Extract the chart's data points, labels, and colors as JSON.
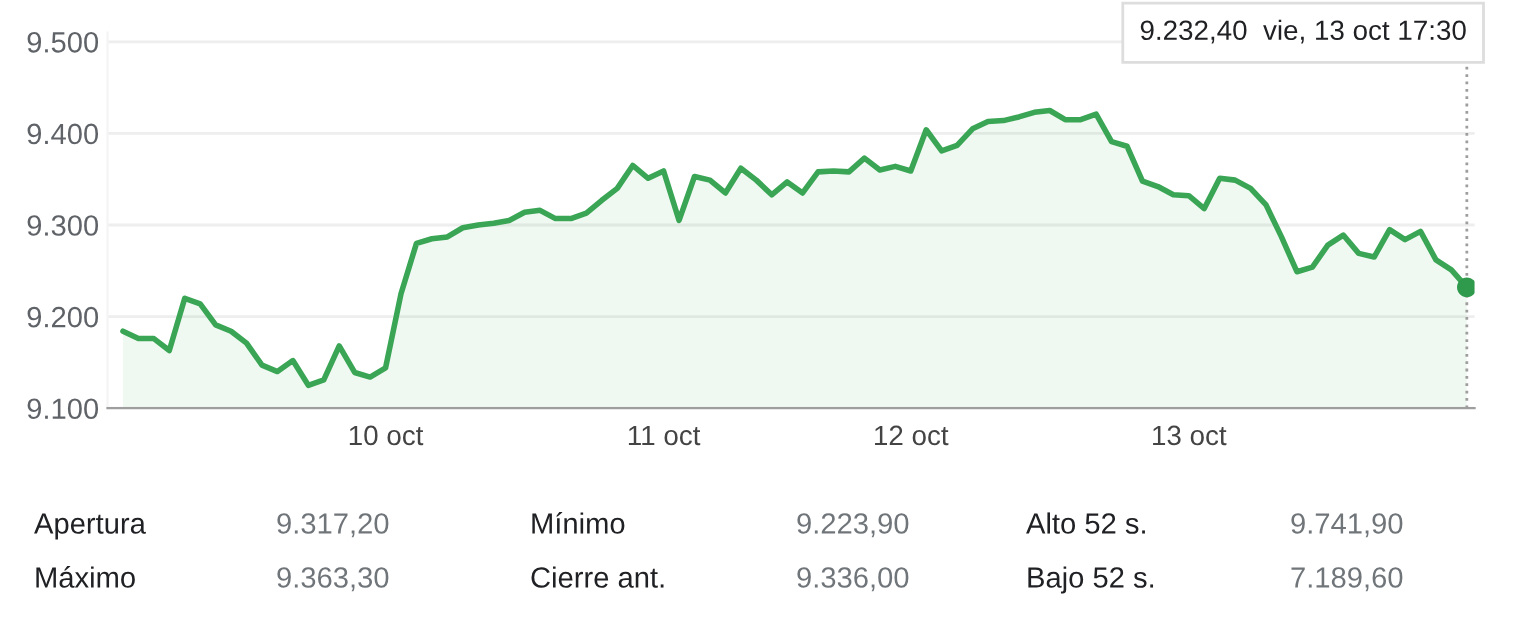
{
  "chart_data": {
    "type": "area",
    "categories": [
      null,
      null,
      null,
      null,
      null,
      null,
      null,
      null,
      null,
      null,
      null,
      null,
      null,
      null,
      null,
      null,
      null,
      "10 oct",
      null,
      null,
      null,
      null,
      null,
      null,
      null,
      null,
      null,
      null,
      null,
      null,
      null,
      null,
      null,
      null,
      null,
      "11 oct",
      null,
      null,
      null,
      null,
      null,
      null,
      null,
      null,
      null,
      null,
      null,
      null,
      null,
      null,
      null,
      "12 oct",
      null,
      null,
      null,
      null,
      null,
      null,
      null,
      null,
      null,
      null,
      null,
      null,
      null,
      null,
      null,
      null,
      null,
      "13 oct",
      null,
      null,
      null,
      null,
      null,
      null,
      null,
      null,
      null,
      null,
      null,
      null,
      null,
      null,
      null,
      null,
      null,
      null
    ],
    "series": [
      {
        "color": "#3aa655",
        "marker": "none",
        "values": [
          9184,
          9176,
          9176,
          9163,
          9220,
          9214,
          9191,
          9184,
          9171,
          9147,
          9140,
          9152,
          9125,
          9131,
          9168,
          9139,
          9134,
          9144,
          9225,
          9280,
          9285,
          9287,
          9297,
          9300,
          9302,
          9305,
          9314,
          9316,
          9307,
          9307,
          9313,
          9327,
          9340,
          9365,
          9351,
          9359,
          9305,
          9353,
          9349,
          9335,
          9362,
          9349,
          9333,
          9347,
          9335,
          9358,
          9359,
          9358,
          9373,
          9360,
          9364,
          9359,
          9404,
          9381,
          9387,
          9405,
          9413,
          9414,
          9418,
          9423,
          9425,
          9415,
          9415,
          9421,
          9391,
          9386,
          9348,
          9342,
          9333,
          9332,
          9318,
          9351,
          9349,
          9340,
          9322,
          9287,
          9249,
          9254,
          9278,
          9289,
          9269,
          9265,
          9295,
          9284,
          9293,
          9262,
          9251,
          9232
        ]
      },
      {
        "type": "scatter",
        "marker": "circle",
        "color": "#2f9a4c",
        "values": [
          null,
          null,
          null,
          null,
          null,
          null,
          null,
          null,
          null,
          null,
          null,
          null,
          null,
          null,
          null,
          null,
          null,
          null,
          null,
          null,
          null,
          null,
          null,
          null,
          null,
          null,
          null,
          null,
          null,
          null,
          null,
          null,
          null,
          null,
          null,
          null,
          null,
          null,
          null,
          null,
          null,
          null,
          null,
          null,
          null,
          null,
          null,
          null,
          null,
          null,
          null,
          null,
          null,
          null,
          null,
          null,
          null,
          null,
          null,
          null,
          null,
          null,
          null,
          null,
          null,
          null,
          null,
          null,
          null,
          null,
          null,
          null,
          null,
          null,
          null,
          null,
          null,
          null,
          null,
          null,
          null,
          null,
          null,
          null,
          null,
          null,
          null,
          9232
        ]
      }
    ],
    "ylim": [
      9100,
      9510
    ],
    "yticks": [
      {
        "value": 9100,
        "label": "9.100"
      },
      {
        "value": 9200,
        "label": "9.200"
      },
      {
        "value": 9300,
        "label": "9.300"
      },
      {
        "value": 9400,
        "label": "9.400"
      },
      {
        "value": 9500,
        "label": "9.500"
      }
    ],
    "grid": "y",
    "annotations": [
      "9.232,40  vie, 13 oct 17:30",
      "Apertura",
      "9.317,20",
      "Mínimo",
      "9.223,90",
      "Alto 52 s.",
      "9.741,90",
      "Máximo",
      "9.363,30",
      "Cierre ant.",
      "9.336,00",
      "Bajo 52 s.",
      "7.189,60"
    ]
  }
}
